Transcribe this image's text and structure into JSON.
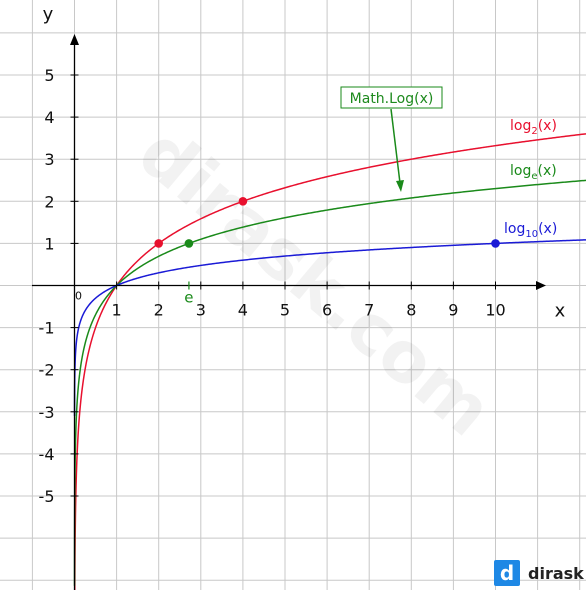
{
  "chart_data": {
    "type": "line",
    "title": "",
    "xlabel": "x",
    "ylabel": "y",
    "xlim": [
      -1,
      11
    ],
    "ylim": [
      -7,
      6
    ],
    "x_ticks": [
      1,
      2,
      3,
      4,
      5,
      6,
      7,
      8,
      9,
      10
    ],
    "y_ticks": [
      5,
      4,
      3,
      2,
      1,
      -1,
      -2,
      -3,
      -4,
      -5
    ],
    "origin_label": "0",
    "grid": true,
    "series": [
      {
        "name": "log2(x)",
        "label_main": "log",
        "label_sub": "2",
        "label_tail": "(x)",
        "color": "#e8102e",
        "base": 2
      },
      {
        "name": "loge(x)",
        "label_main": "log",
        "label_sub": "e",
        "label_tail": "(x)",
        "color": "#1a8a1a",
        "base": 2.718281828
      },
      {
        "name": "log10(x)",
        "label_main": "log",
        "label_sub": "10",
        "label_tail": "(x)",
        "color": "#1a1ad6",
        "base": 10
      }
    ],
    "highlighted_points": [
      {
        "x": 2,
        "y": 1,
        "color": "#e8102e"
      },
      {
        "x": 4,
        "y": 2,
        "color": "#e8102e"
      },
      {
        "x": 2.718,
        "y": 1,
        "color": "#1a8a1a"
      },
      {
        "x": 10,
        "y": 1,
        "color": "#1a1ad6"
      }
    ],
    "annotations": [
      {
        "text": "Math.Log(x)",
        "color": "#1a8a1a",
        "points_to": "loge(x)"
      },
      {
        "text": "e",
        "color": "#1a8a1a",
        "at_x": 2.718
      }
    ]
  },
  "watermark": "dirask.com",
  "logo": {
    "mark": "d",
    "text": "dirask",
    "color": "#1e88e5"
  }
}
